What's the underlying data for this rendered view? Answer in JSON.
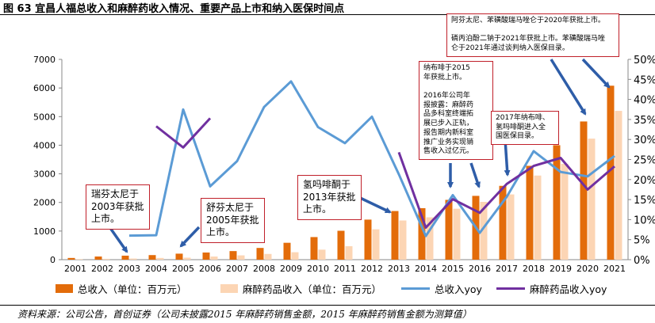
{
  "figure": {
    "title": "图 63  宜昌人福总收入和麻醉药收入情况、重要产品上市和纳入医保时间点",
    "source": "资料来源：公司公告，首创证券（公司未披露2015 年麻醉药销售金额，2015 年麻醉药销售金额为测算值）"
  },
  "colors": {
    "total": "#e36c0a",
    "anesth": "#fcd5b4",
    "total_yoy": "#5b9bd5",
    "anesth_yoy": "#7030a0",
    "arrow": "#2e5da8",
    "callout_border": "#c0202a"
  },
  "legend": {
    "total": "总收入（单位：百万元）",
    "anesth": "麻醉药品收入（单位：百万元）",
    "total_yoy": "总收入yoy",
    "anesth_yoy": "麻醉药品收入yoy"
  },
  "annotations": {
    "a2003": [
      "瑞芬太尼于",
      "2003年获批",
      "上市。"
    ],
    "a2005": [
      "舒芬太尼于",
      "2005年获批",
      "上市。"
    ],
    "a2013": [
      "氢吗啡酮于",
      "2013年获批",
      "上市。"
    ],
    "a2015": [
      "纳布啡于2015",
      "年获批上市。",
      "",
      "2016年公司年",
      "报披露：麻醉药",
      "品多科室终端拓",
      "展已步入正轨，",
      "报告期内新科室",
      "推广业务实现销",
      "售收入过亿元。"
    ],
    "a2017": [
      "2017年纳布啡、",
      "氢吗啡酮进入全",
      "国医保目录。"
    ],
    "a2020": [
      "阿芬太尼、苯磺酸瑞马唑仑于2020年获批上市。",
      "",
      "磷丙泊酚二钠于2021年获批上市。苯磺酸瑞马唑",
      "仑于2021年通过谈判纳入医保目录。"
    ]
  },
  "chart_data": {
    "type": "bar",
    "categories": [
      "2001",
      "2002",
      "2003",
      "2004",
      "2005",
      "2006",
      "2007",
      "2008",
      "2009",
      "2010",
      "2011",
      "2012",
      "2013",
      "2014",
      "2015",
      "2016",
      "2017",
      "2018",
      "2019",
      "2020",
      "2021"
    ],
    "series": [
      {
        "name": "总收入（单位：百万元）",
        "type": "bar",
        "axis": "left",
        "values": [
          60,
          110,
          140,
          160,
          210,
          250,
          300,
          410,
          590,
          790,
          1010,
          1400,
          1700,
          1800,
          2090,
          2230,
          2580,
          3280,
          4000,
          4830,
          6080
        ]
      },
      {
        "name": "麻醉药品收入（单位：百万元）",
        "type": "bar",
        "axis": "left",
        "values": [
          20,
          30,
          40,
          60,
          70,
          110,
          150,
          200,
          260,
          350,
          470,
          1060,
          1370,
          1480,
          1780,
          2020,
          2280,
          2940,
          3350,
          4230,
          5200
        ]
      },
      {
        "name": "总收入yoy",
        "type": "line",
        "axis": "right",
        "values": [
          null,
          null,
          6,
          6.1,
          37.5,
          18.3,
          24.6,
          38.1,
          44.5,
          33.1,
          29.1,
          35.7,
          21.3,
          5.9,
          16.1,
          6.7,
          15.7,
          27.1,
          21.9,
          20.8,
          25.9
        ]
      },
      {
        "name": "麻醉药品收入yoy",
        "type": "line",
        "axis": "right",
        "values": [
          null,
          null,
          null,
          33.3,
          28,
          35.3,
          null,
          null,
          null,
          null,
          null,
          null,
          26.8,
          8,
          15.1,
          11.7,
          18.9,
          23.4,
          25.4,
          17.5,
          23.3
        ]
      }
    ],
    "yleft": {
      "min": 0,
      "max": 7000,
      "ticks": [
        0,
        1000,
        2000,
        3000,
        4000,
        5000,
        6000,
        7000
      ]
    },
    "yright": {
      "min": 0,
      "max": 50,
      "ticks": [
        0,
        5,
        10,
        15,
        20,
        25,
        30,
        35,
        40,
        45,
        50
      ],
      "tick_labels": [
        "0%",
        "5%",
        "10%",
        "15%",
        "20%",
        "25%",
        "30%",
        "35%",
        "40%",
        "45%",
        "50%"
      ]
    },
    "grid": false,
    "legend_position": "bottom"
  }
}
